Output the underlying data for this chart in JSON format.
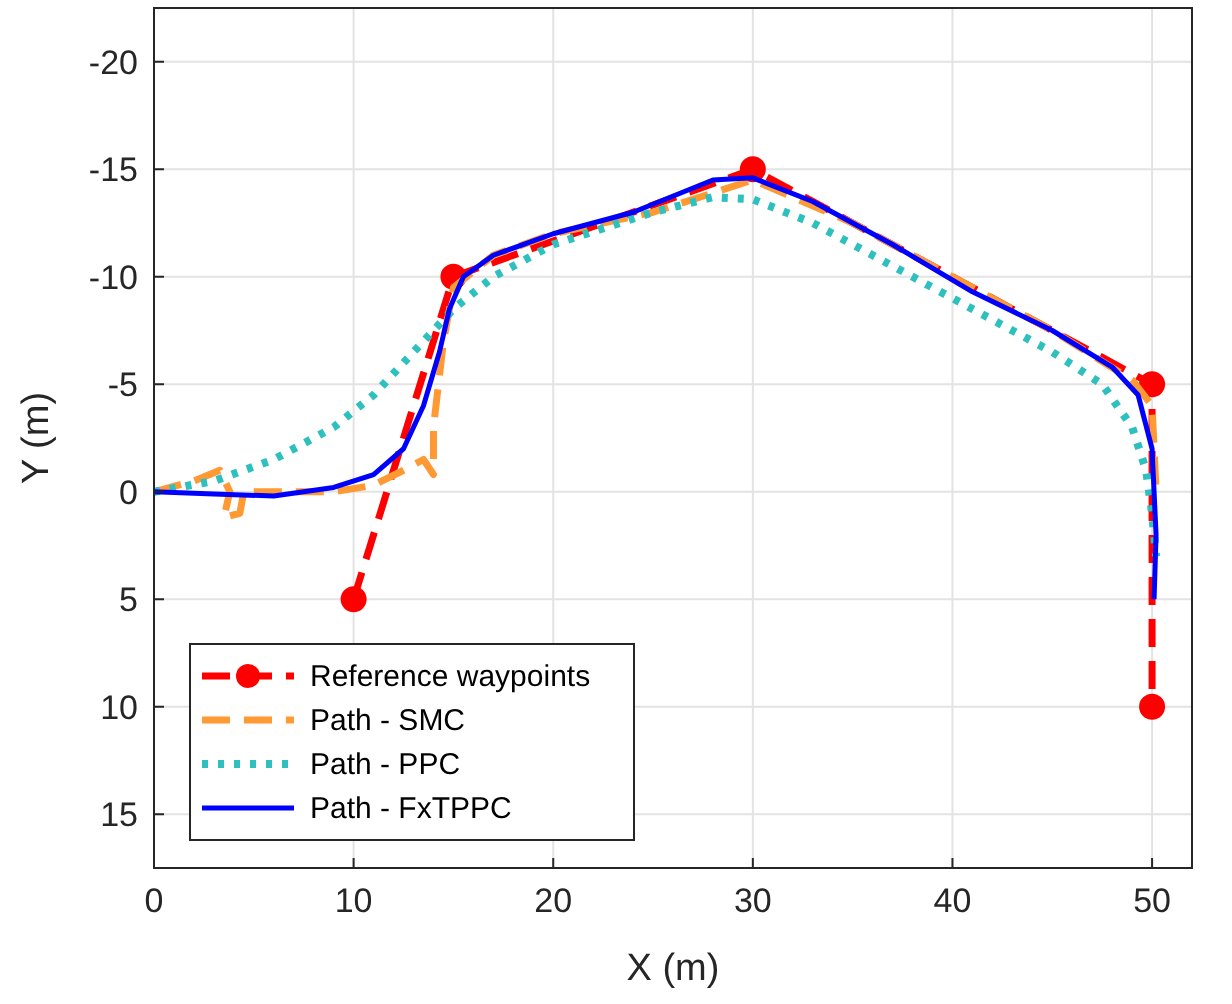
{
  "chart_data": {
    "type": "line",
    "xlabel": "X (m)",
    "ylabel": "Y (m)",
    "xlim": [
      0,
      52
    ],
    "ylim": [
      17.5,
      -22.5
    ],
    "xticks": [
      0,
      10,
      20,
      30,
      40,
      50
    ],
    "yticks": [
      -20,
      -15,
      -10,
      -5,
      0,
      5,
      10,
      15
    ],
    "grid": true,
    "legend": "bottom left",
    "series": [
      {
        "name": "Reference waypoints",
        "color": "#ff0000",
        "line_style": "dashed",
        "marker": "circle",
        "x": [
          10,
          15,
          30,
          50,
          50
        ],
        "values": [
          5,
          -10,
          -15,
          -5,
          10
        ]
      },
      {
        "name": "Path - SMC",
        "color": "#ff9933",
        "line_style": "dashed",
        "marker": "none",
        "x": [
          0,
          2,
          3.3,
          3.8,
          3.5,
          4.3,
          4.5,
          6,
          9,
          11,
          12.5,
          13.5,
          14,
          14,
          14.5,
          15,
          17,
          20,
          25,
          30,
          35,
          40,
          45,
          49,
          50,
          50.2
        ],
        "values": [
          0,
          -0.5,
          -1,
          0,
          1.2,
          1,
          0,
          0,
          0,
          -0.3,
          -1,
          -1.5,
          -0.8,
          -3,
          -7,
          -9.5,
          -11,
          -12,
          -13,
          -14.5,
          -12.5,
          -10,
          -7.5,
          -5.2,
          -4,
          0
        ]
      },
      {
        "name": "Path - PPC",
        "color": "#2ebfbf",
        "line_style": "dotted",
        "marker": "none",
        "x": [
          0,
          3,
          6,
          9,
          11,
          13,
          15,
          17,
          20,
          25,
          28,
          30,
          33,
          37,
          41,
          45,
          47.5,
          49,
          49.7,
          50,
          50.2
        ],
        "values": [
          0,
          -0.5,
          -1.5,
          -3,
          -4.5,
          -6.5,
          -8.5,
          -10,
          -11.5,
          -13,
          -13.7,
          -13.6,
          -12.5,
          -10.5,
          -8.5,
          -6.5,
          -5,
          -3,
          -1,
          1,
          3
        ]
      },
      {
        "name": "Path - FxTPPC",
        "color": "#0000ff",
        "line_style": "solid",
        "marker": "none",
        "x": [
          0,
          3,
          6,
          9,
          11,
          12.5,
          13.5,
          14.3,
          14.8,
          15.5,
          17,
          20,
          24,
          28,
          30,
          33,
          37,
          41,
          45,
          48,
          49.3,
          50,
          50.2,
          50.1
        ],
        "values": [
          0,
          0.1,
          0.2,
          -0.2,
          -0.8,
          -2,
          -4,
          -6.5,
          -8.5,
          -10,
          -11,
          -12,
          -13,
          -14.5,
          -14.6,
          -13.5,
          -11.5,
          -9.3,
          -7.5,
          -5.8,
          -4.5,
          -2,
          2,
          5
        ]
      }
    ]
  }
}
